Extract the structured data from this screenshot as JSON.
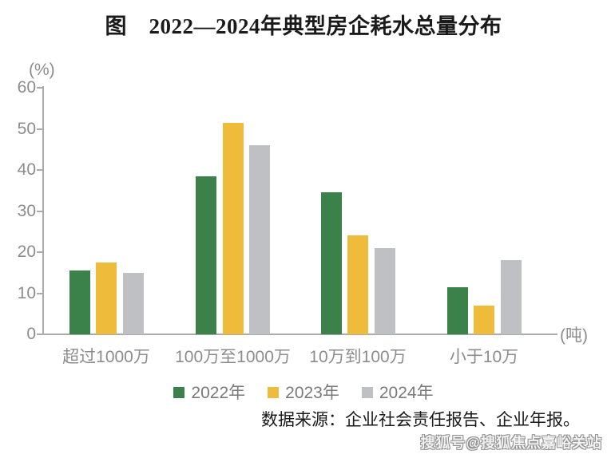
{
  "title": "图　2022—2024年典型房企耗水总量分布",
  "source": "数据来源：企业社会责任报告、企业年报。",
  "watermark": "搜狐号@搜狐焦点嘉峪关站",
  "colors": {
    "green": "#3a8249",
    "yellow": "#eebc3a",
    "gray": "#bfc0c3",
    "axis": "#ababab",
    "tick_label": "#8c8c8c",
    "legend_text": "#7a7a7a"
  },
  "chart_data": {
    "type": "bar",
    "title": "图　2022—2024年典型房企耗水总量分布",
    "y_unit": "(%)",
    "x_unit": "(吨)",
    "ylabel": "",
    "xlabel": "",
    "ylim": [
      0,
      60
    ],
    "ytick_step": 10,
    "yticks": [
      0,
      10,
      20,
      30,
      40,
      50,
      60
    ],
    "grid": false,
    "legend_position": "bottom",
    "categories": [
      "超过1000万",
      "100万至1000万",
      "10万到100万",
      "小于10万"
    ],
    "series": [
      {
        "name": "2022年",
        "color": "#3a8249",
        "values": [
          15.5,
          38.5,
          34.5,
          11.5
        ]
      },
      {
        "name": "2023年",
        "color": "#eebc3a",
        "values": [
          17.5,
          51.5,
          24.0,
          7.0
        ]
      },
      {
        "name": "2024年",
        "color": "#bfc0c3",
        "values": [
          15.0,
          46.0,
          21.0,
          18.0
        ]
      }
    ]
  }
}
